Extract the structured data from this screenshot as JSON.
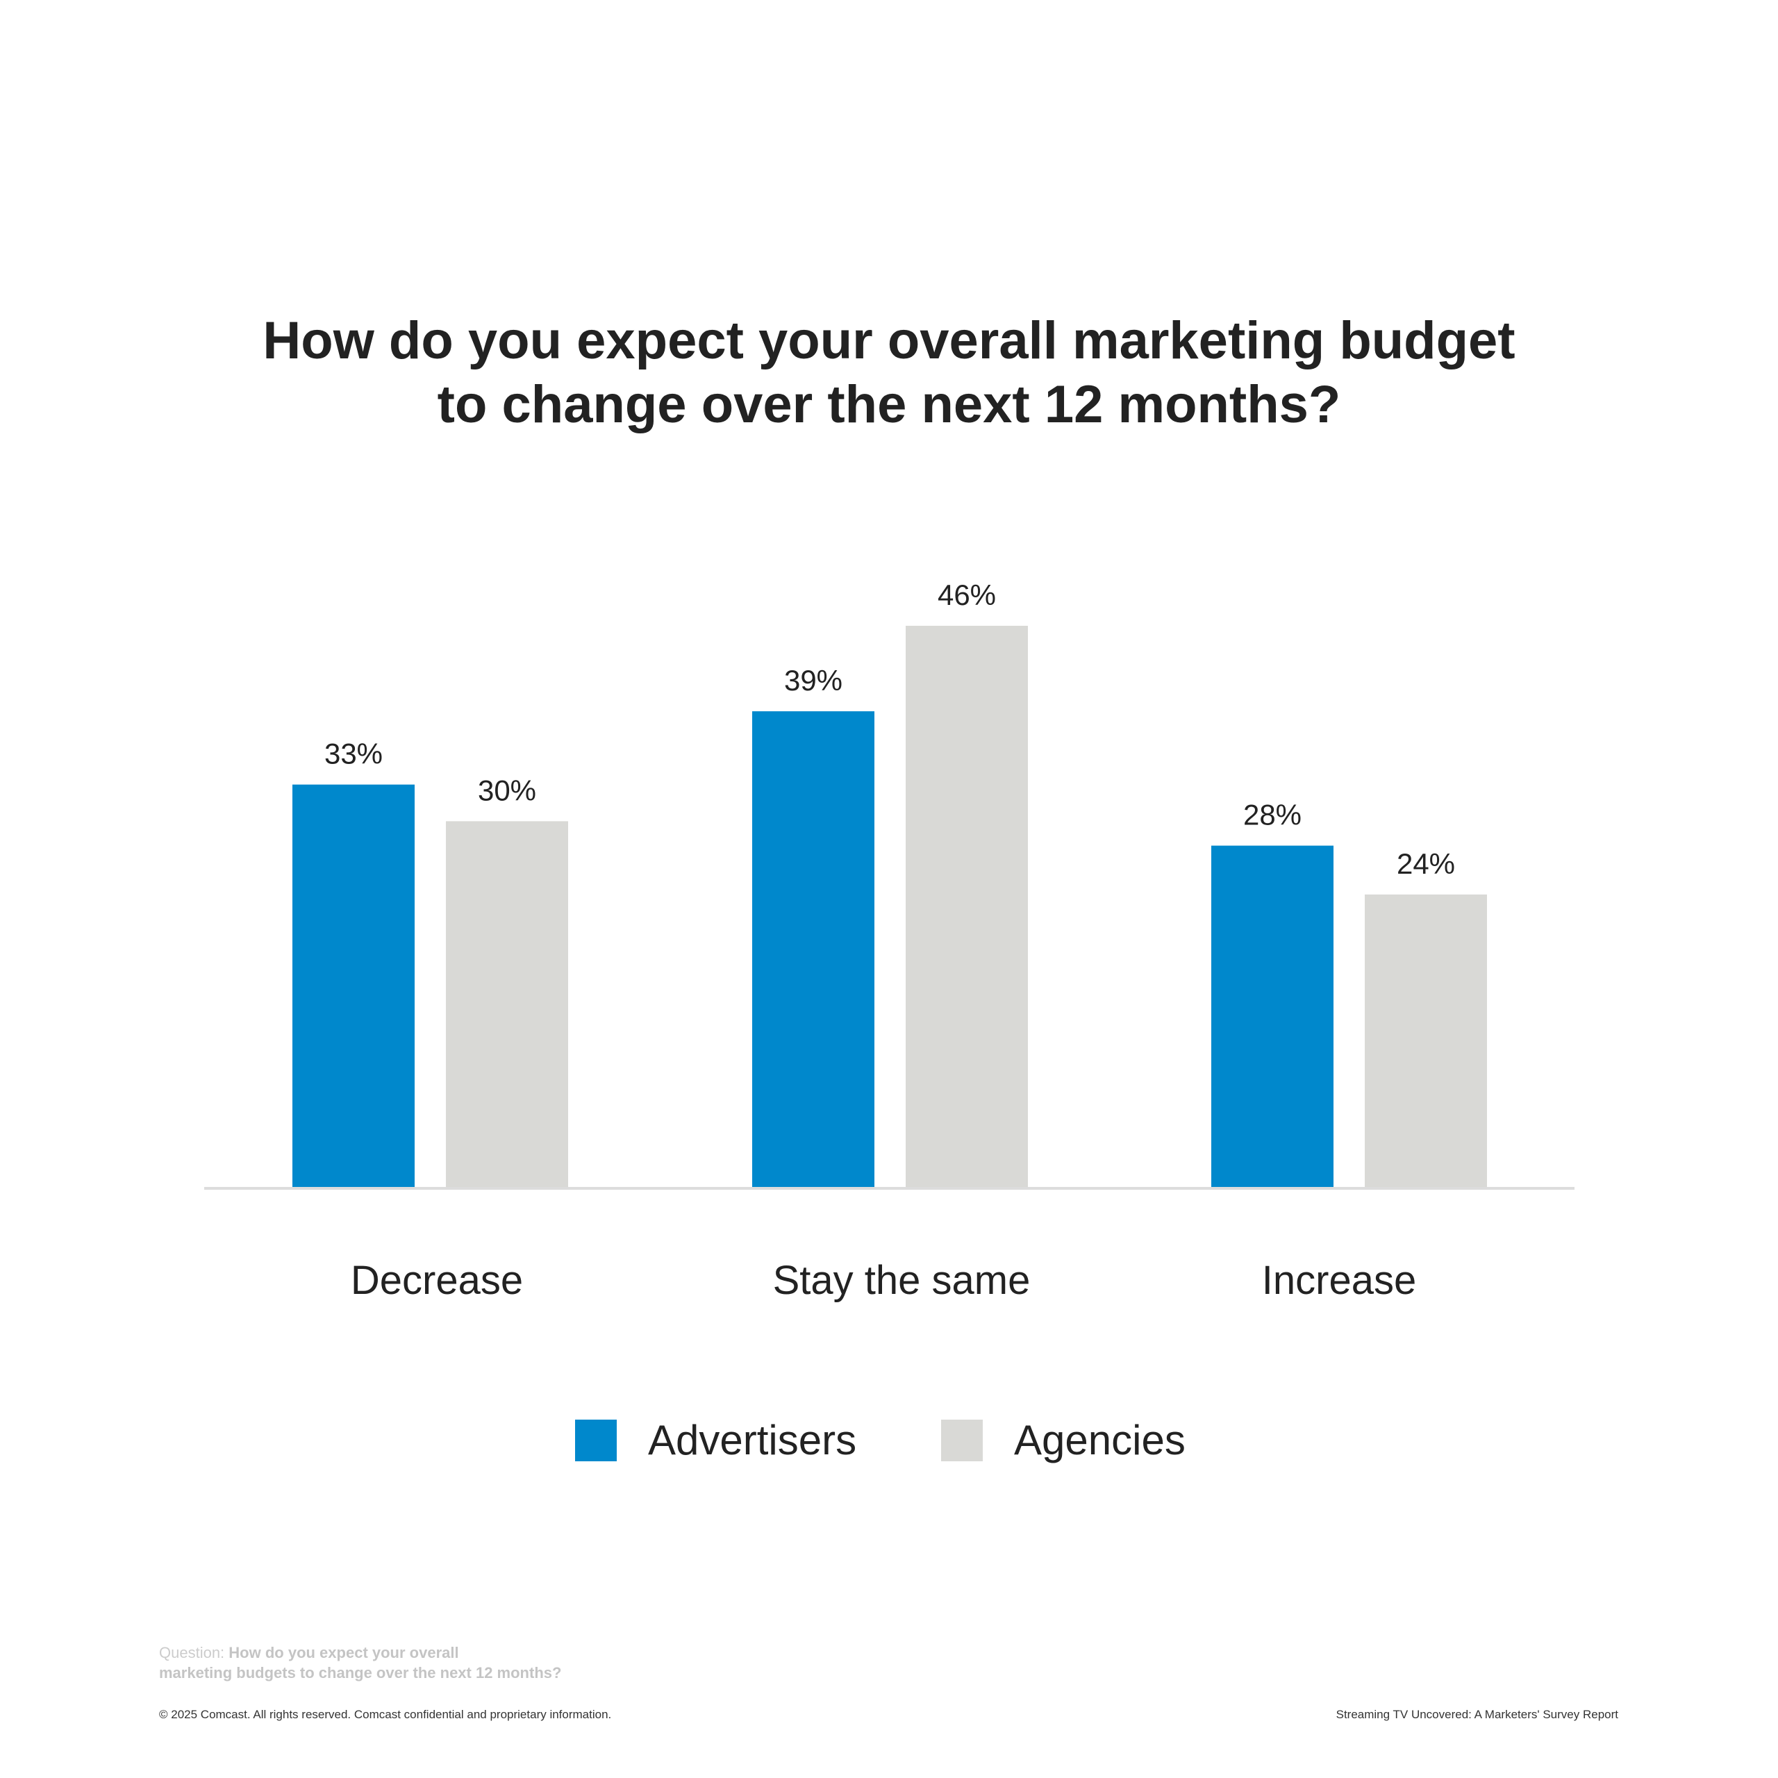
{
  "title_lines": [
    "How do you expect your overall marketing budget",
    "to change over the next 12 months?"
  ],
  "chart_data": {
    "type": "bar",
    "title": "How do you expect your overall marketing budget to change over the next 12 months?",
    "categories": [
      "Decrease",
      "Stay the same",
      "Increase"
    ],
    "series": [
      {
        "name": "Advertisers",
        "color": "#0088CC",
        "values": [
          33,
          39,
          28
        ]
      },
      {
        "name": "Agencies",
        "color": "#D9D9D6",
        "values": [
          30,
          46,
          24
        ]
      }
    ],
    "value_suffix": "%",
    "xlabel": "",
    "ylabel": "",
    "ylim": [
      0,
      46
    ],
    "grid": false,
    "legend": "bottom-center"
  },
  "footer": {
    "question_label": "Question:",
    "question_text": "How do you expect your overall marketing budgets to change over the next 12 months?",
    "question_line1": "How do you expect your overall",
    "question_line2": "marketing budgets to change over the next 12 months?",
    "copyright": "© 2025 Comcast. All rights reserved. Comcast confidential and proprietary information.",
    "report_title": "Streaming TV Uncovered: A Marketers' Survey Report"
  }
}
